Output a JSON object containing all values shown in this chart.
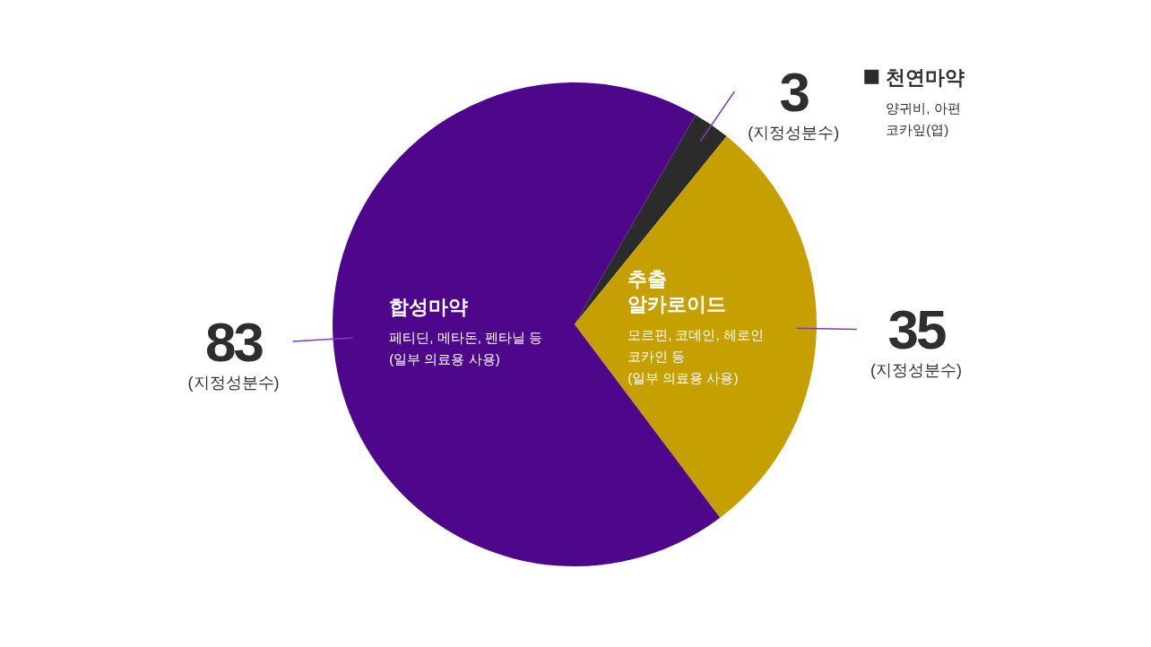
{
  "chart_data": {
    "type": "pie",
    "categories": [
      "천연마약",
      "추출 알카로이드",
      "합성마약"
    ],
    "values": [
      3,
      35,
      83
    ],
    "colors": [
      "#2b2b2b",
      "#c69f00",
      "#4e068a"
    ],
    "value_labels": [
      "3\n(지정성분수)",
      "35\n(지정성분수)",
      "83\n(지정성분수)"
    ],
    "annotations": [
      "양귀비, 아편\n코카잎(엽)",
      "모르핀, 코데인, 헤로인\n코카인 등\n(일부 의료용 사용)",
      "페티딘, 메타돈, 펜타닐 등\n(일부 의료용 사용)"
    ]
  }
}
